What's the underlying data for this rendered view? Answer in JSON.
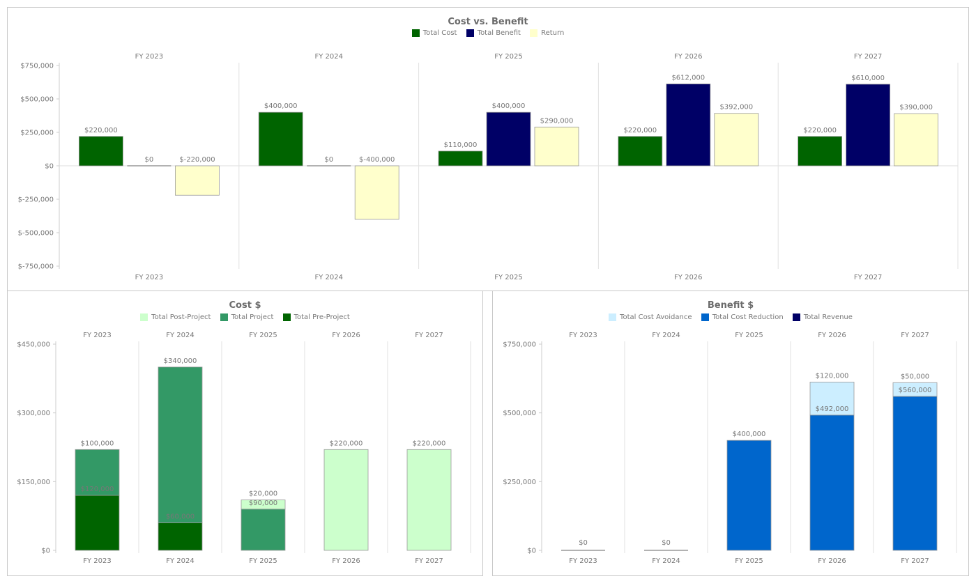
{
  "chart_data": [
    {
      "id": "cost-vs-benefit",
      "type": "bar",
      "mode": "grouped",
      "title": "Cost vs. Benefit",
      "categories": [
        "FY 2023",
        "FY 2024",
        "FY 2025",
        "FY 2026",
        "FY 2027"
      ],
      "series": [
        {
          "name": "Total Cost",
          "color": "#006400",
          "values": [
            220000,
            400000,
            110000,
            220000,
            220000
          ]
        },
        {
          "name": "Total Benefit",
          "color": "#000066",
          "values": [
            0,
            0,
            400000,
            612000,
            610000
          ]
        },
        {
          "name": "Return",
          "color": "#ffffcc",
          "values": [
            -220000,
            -400000,
            290000,
            392000,
            390000
          ]
        }
      ],
      "ylim": [
        -750000,
        750000
      ],
      "yticks": [
        750000,
        500000,
        250000,
        0,
        -250000,
        -500000,
        -750000
      ],
      "legend": "top"
    },
    {
      "id": "cost",
      "type": "bar",
      "mode": "stacked",
      "title": "Cost $",
      "categories": [
        "FY 2023",
        "FY 2024",
        "FY 2025",
        "FY 2026",
        "FY 2027"
      ],
      "series": [
        {
          "name": "Total Post-Project",
          "color": "#ccffcc",
          "values": [
            0,
            0,
            20000,
            220000,
            220000
          ]
        },
        {
          "name": "Total Project",
          "color": "#339966",
          "values": [
            100000,
            340000,
            90000,
            0,
            0
          ]
        },
        {
          "name": "Total Pre-Project",
          "color": "#006400",
          "values": [
            120000,
            60000,
            0,
            0,
            0
          ]
        }
      ],
      "ylim": [
        0,
        450000
      ],
      "yticks": [
        450000,
        300000,
        150000,
        0
      ],
      "legend": "top"
    },
    {
      "id": "benefit",
      "type": "bar",
      "mode": "stacked",
      "title": "Benefit $",
      "categories": [
        "FY 2023",
        "FY 2024",
        "FY 2025",
        "FY 2026",
        "FY 2027"
      ],
      "series": [
        {
          "name": "Total Cost Avoidance",
          "color": "#cceeff",
          "values": [
            0,
            0,
            0,
            120000,
            50000
          ]
        },
        {
          "name": "Total Cost Reduction",
          "color": "#0066cc",
          "values": [
            0,
            0,
            400000,
            492000,
            560000
          ]
        },
        {
          "name": "Total Revenue",
          "color": "#000066",
          "values": [
            0,
            0,
            0,
            0,
            0
          ]
        }
      ],
      "ylim": [
        0,
        750000
      ],
      "yticks": [
        750000,
        500000,
        250000,
        0
      ],
      "legend": "top"
    }
  ]
}
